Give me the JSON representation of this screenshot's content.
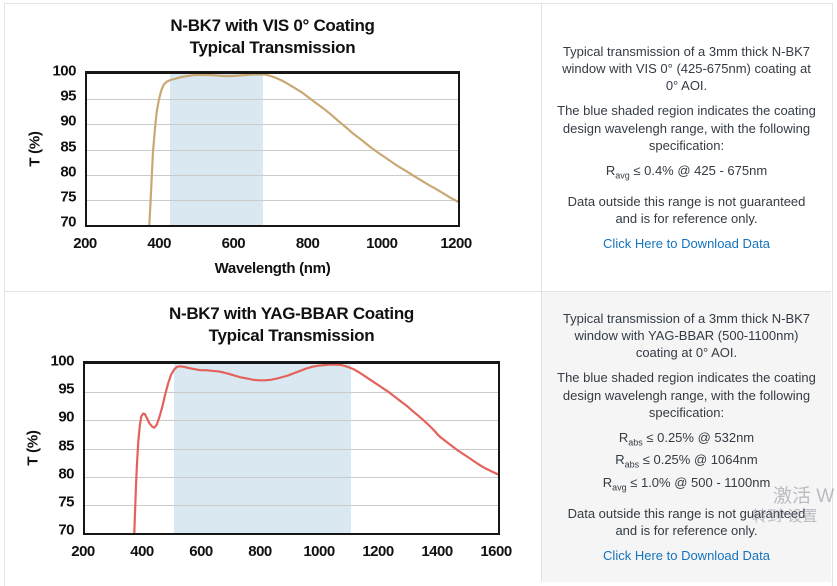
{
  "chart_data": [
    {
      "type": "line",
      "title_line1": "N-BK7 with VIS 0° Coating",
      "title_line2": "Typical Transmission",
      "xlabel": "Wavelength (nm)",
      "ylabel": "T (%)",
      "x_range": [
        200,
        1200
      ],
      "y_range": [
        70,
        100
      ],
      "x_ticks": [
        200,
        400,
        600,
        800,
        1000,
        1200
      ],
      "y_ticks": [
        70,
        75,
        80,
        85,
        90,
        95,
        100
      ],
      "band_nm": [
        425,
        675
      ],
      "band_color": "rgba(188,213,232,0.55)",
      "line_color": "#C9A874",
      "grid": "horizontal",
      "points": [
        [
          368,
          70
        ],
        [
          371,
          74
        ],
        [
          374,
          79
        ],
        [
          378,
          84.5
        ],
        [
          383,
          89
        ],
        [
          388,
          92.5
        ],
        [
          394,
          95
        ],
        [
          400,
          96.7
        ],
        [
          407,
          97.9
        ],
        [
          415,
          98.5
        ],
        [
          425,
          98.8
        ],
        [
          440,
          99.1
        ],
        [
          455,
          99.4
        ],
        [
          470,
          99.6
        ],
        [
          490,
          99.8
        ],
        [
          510,
          99.8
        ],
        [
          530,
          99.8
        ],
        [
          550,
          99.7
        ],
        [
          570,
          99.6
        ],
        [
          590,
          99.6
        ],
        [
          610,
          99.7
        ],
        [
          630,
          99.8
        ],
        [
          650,
          99.9
        ],
        [
          665,
          99.9
        ],
        [
          680,
          99.9
        ],
        [
          695,
          99.6
        ],
        [
          710,
          99.2
        ],
        [
          725,
          98.7
        ],
        [
          740,
          98.1
        ],
        [
          760,
          97.2
        ],
        [
          780,
          96.3
        ],
        [
          800,
          95.2
        ],
        [
          820,
          94.1
        ],
        [
          840,
          93
        ],
        [
          860,
          91.8
        ],
        [
          880,
          90.5
        ],
        [
          900,
          89.3
        ],
        [
          920,
          88
        ],
        [
          940,
          86.9
        ],
        [
          960,
          85.7
        ],
        [
          980,
          84.6
        ],
        [
          1000,
          83.6
        ],
        [
          1020,
          82.6
        ],
        [
          1040,
          81.6
        ],
        [
          1060,
          80.7
        ],
        [
          1080,
          79.8
        ],
        [
          1100,
          78.9
        ],
        [
          1120,
          78
        ],
        [
          1140,
          77.2
        ],
        [
          1160,
          76.3
        ],
        [
          1180,
          75.4
        ],
        [
          1200,
          74.6
        ]
      ]
    },
    {
      "type": "line",
      "title_line1": "N-BK7 with YAG-BBAR Coating",
      "title_line2": "Typical Transmission",
      "xlabel": "",
      "ylabel": "T (%)",
      "x_range": [
        200,
        1600
      ],
      "y_range": [
        70,
        100
      ],
      "x_ticks": [
        200,
        400,
        600,
        800,
        1000,
        1200,
        1400,
        1600
      ],
      "y_ticks": [
        70,
        75,
        80,
        85,
        90,
        95,
        100
      ],
      "band_nm": [
        500,
        1100
      ],
      "band_color": "rgba(188,213,232,0.55)",
      "line_color": "#E4625C",
      "grid": "horizontal",
      "points": [
        [
          367,
          70
        ],
        [
          370,
          74
        ],
        [
          373,
          78.5
        ],
        [
          377,
          83
        ],
        [
          381,
          86.5
        ],
        [
          386,
          89.2
        ],
        [
          391,
          90.7
        ],
        [
          397,
          91.2
        ],
        [
          403,
          91.1
        ],
        [
          410,
          90.4
        ],
        [
          418,
          89.5
        ],
        [
          427,
          88.9
        ],
        [
          435,
          88.7
        ],
        [
          443,
          89.2
        ],
        [
          452,
          90.5
        ],
        [
          462,
          92.4
        ],
        [
          472,
          94.6
        ],
        [
          482,
          96.6
        ],
        [
          492,
          98.1
        ],
        [
          502,
          99
        ],
        [
          512,
          99.5
        ],
        [
          522,
          99.6
        ],
        [
          535,
          99.5
        ],
        [
          550,
          99.3
        ],
        [
          570,
          99.1
        ],
        [
          590,
          98.9
        ],
        [
          610,
          98.9
        ],
        [
          630,
          98.8
        ],
        [
          650,
          98.7
        ],
        [
          670,
          98.5
        ],
        [
          690,
          98.2
        ],
        [
          710,
          97.9
        ],
        [
          730,
          97.6
        ],
        [
          750,
          97.4
        ],
        [
          770,
          97.2
        ],
        [
          790,
          97.1
        ],
        [
          810,
          97.1
        ],
        [
          830,
          97.2
        ],
        [
          850,
          97.4
        ],
        [
          870,
          97.7
        ],
        [
          890,
          98
        ],
        [
          910,
          98.4
        ],
        [
          930,
          98.8
        ],
        [
          950,
          99.2
        ],
        [
          970,
          99.5
        ],
        [
          990,
          99.7
        ],
        [
          1010,
          99.8
        ],
        [
          1030,
          99.9
        ],
        [
          1050,
          99.9
        ],
        [
          1070,
          99.8
        ],
        [
          1090,
          99.5
        ],
        [
          1110,
          99.1
        ],
        [
          1130,
          98.5
        ],
        [
          1150,
          97.8
        ],
        [
          1170,
          97.1
        ],
        [
          1190,
          96.4
        ],
        [
          1210,
          95.7
        ],
        [
          1230,
          95
        ],
        [
          1250,
          94.2
        ],
        [
          1270,
          93.4
        ],
        [
          1290,
          92.6
        ],
        [
          1310,
          91.7
        ],
        [
          1330,
          90.8
        ],
        [
          1350,
          89.9
        ],
        [
          1370,
          88.9
        ],
        [
          1385,
          88.1
        ],
        [
          1395,
          87.5
        ],
        [
          1405,
          87
        ],
        [
          1420,
          86.4
        ],
        [
          1440,
          85.6
        ],
        [
          1460,
          84.8
        ],
        [
          1480,
          84.1
        ],
        [
          1500,
          83.4
        ],
        [
          1520,
          82.7
        ],
        [
          1540,
          82
        ],
        [
          1560,
          81.4
        ],
        [
          1580,
          80.9
        ],
        [
          1600,
          80.4
        ]
      ]
    }
  ],
  "panels": [
    {
      "para1": "Typical transmission of a 3mm thick N-BK7 window with VIS 0° (425-675nm) coating at 0° AOI.",
      "para2": "The blue shaded region indicates the coating design wavelengh range, with the following specification:",
      "specs": [
        {
          "base": "R",
          "sub": "avg",
          "rest": " ≤ 0.4% @ 425 - 675nm"
        }
      ],
      "para3": "Data outside this range is not guaranteed and is for reference only.",
      "link": "Click Here to Download Data"
    },
    {
      "para1": "Typical transmission of a 3mm thick N-BK7 window with YAG-BBAR (500-1100nm) coating at 0° AOI.",
      "para2": "The blue shaded region indicates the coating design wavelengh range, with the following specification:",
      "specs": [
        {
          "base": "R",
          "sub": "abs",
          "rest": " ≤ 0.25% @ 532nm"
        },
        {
          "base": "R",
          "sub": "abs",
          "rest": " ≤ 0.25% @ 1064nm"
        },
        {
          "base": "R",
          "sub": "avg",
          "rest": " ≤ 1.0% @ 500 - 1100nm"
        }
      ],
      "para3": "Data outside this range is not guaranteed and is for reference only.",
      "link": "Click Here to Download Data"
    }
  ],
  "watermark": {
    "line1": "激活 W",
    "line2": "转到\"设置"
  }
}
